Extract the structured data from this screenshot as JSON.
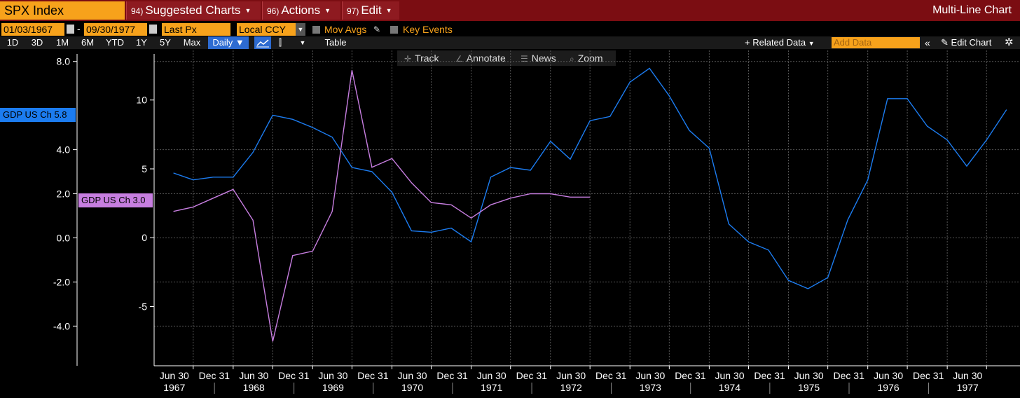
{
  "header": {
    "ticker": "SPX Index",
    "menus": [
      {
        "num": "94)",
        "label": "Suggested Charts"
      },
      {
        "num": "96)",
        "label": "Actions"
      },
      {
        "num": "97)",
        "label": "Edit"
      }
    ],
    "chart_title": "Multi-Line Chart"
  },
  "options": {
    "start_date": "01/03/1967",
    "end_date": "09/30/1977",
    "field": "Last Px",
    "currency": "Local CCY",
    "mov_avgs": "Mov Avgs",
    "key_events": "Key Events"
  },
  "range_bar": {
    "ranges": [
      "1D",
      "3D",
      "1M",
      "6M",
      "YTD",
      "1Y",
      "5Y",
      "Max"
    ],
    "period": "Daily ▼",
    "table": "Table",
    "related_data": "+ Related Data",
    "add_data_placeholder": "Add Data",
    "edit_chart": "Edit Chart"
  },
  "tools": [
    "Track",
    "Annotate",
    "News",
    "Zoom"
  ],
  "series_tags": [
    {
      "label": "GDP US Ch 5.8",
      "color": "#1c7cf0"
    },
    {
      "label": "GDP US Ch 3.0",
      "color": "#c77ee0"
    }
  ],
  "chart_data": {
    "type": "line",
    "x_tick_labels": [
      "Jun 30",
      "Dec 31",
      "Jun 30",
      "Dec 31",
      "Jun 30",
      "Dec 31",
      "Jun 30",
      "Dec 31",
      "Jun 30",
      "Dec 31",
      "Jun 30",
      "Dec 31",
      "Jun 30",
      "Dec 31",
      "Jun 30",
      "Dec 31",
      "Jun 30",
      "Dec 31",
      "Jun 30",
      "Dec 31",
      "Jun 30"
    ],
    "x_year_labels": [
      "1967",
      "1968",
      "1969",
      "1970",
      "1971",
      "1972",
      "1973",
      "1974",
      "1975",
      "1976",
      "1977"
    ],
    "left_axis": {
      "ticks": [
        -4.0,
        -2.0,
        0.0,
        2.0,
        4.0,
        8.0
      ],
      "tick_labels": [
        "-4.0",
        "-2.0",
        "0.0",
        "2.0",
        "4.0",
        "8.0"
      ],
      "range": [
        -5.8,
        8.5
      ]
    },
    "right_axis": {
      "ticks": [
        -5,
        0,
        5,
        10
      ],
      "tick_labels": [
        "-5",
        "0",
        "5",
        "10"
      ],
      "range": [
        -9.3,
        13.6
      ]
    },
    "series": [
      {
        "color": "#1c7cf0",
        "axis": "right",
        "x": [
          "1967-03-31",
          "1967-06-30",
          "1967-09-30",
          "1967-12-31",
          "1968-03-31",
          "1968-06-30",
          "1968-09-30",
          "1968-12-31",
          "1969-03-31",
          "1969-06-30",
          "1969-09-30",
          "1969-12-31",
          "1970-03-31",
          "1970-06-30",
          "1970-09-30",
          "1970-12-31",
          "1971-03-31",
          "1971-06-30",
          "1971-09-30",
          "1971-12-31",
          "1972-03-31",
          "1972-06-30",
          "1972-09-30",
          "1972-12-31",
          "1973-03-31",
          "1973-06-30",
          "1973-09-30",
          "1973-12-31",
          "1974-03-31",
          "1974-06-30",
          "1974-09-30",
          "1974-12-31",
          "1975-03-31",
          "1975-06-30",
          "1975-09-30",
          "1975-12-31",
          "1976-03-31",
          "1976-06-30",
          "1976-09-30",
          "1976-12-31",
          "1977-03-31",
          "1977-06-30",
          "1977-09-30"
        ],
        "y": [
          4.7,
          4.2,
          4.4,
          4.4,
          6.2,
          8.9,
          8.6,
          8.0,
          7.3,
          5.1,
          4.8,
          3.3,
          0.5,
          0.4,
          0.7,
          -0.3,
          4.4,
          5.1,
          4.9,
          7.0,
          5.7,
          8.5,
          8.8,
          11.3,
          12.3,
          10.3,
          7.8,
          6.5,
          1.0,
          -0.3,
          -0.9,
          -3.1,
          -3.7,
          -2.9,
          1.3,
          4.2,
          10.1,
          10.1,
          8.1,
          7.1,
          5.2,
          7.1,
          9.3
        ]
      },
      {
        "color": "#c77ee0",
        "axis": "left",
        "x": [
          "1967-03-31",
          "1967-06-30",
          "1967-09-30",
          "1967-12-31",
          "1968-03-31",
          "1968-06-30",
          "1968-09-30",
          "1968-12-31",
          "1969-03-31",
          "1969-06-30",
          "1969-09-30",
          "1969-12-31",
          "1970-03-31",
          "1970-06-30",
          "1970-09-30",
          "1970-12-31",
          "1971-03-31",
          "1971-06-30",
          "1971-09-30",
          "1971-12-31",
          "1972-03-31",
          "1972-06-30"
        ],
        "y": [
          1.2,
          1.4,
          1.8,
          2.2,
          0.8,
          -4.7,
          -0.8,
          -0.6,
          1.2,
          7.6,
          3.2,
          3.6,
          2.5,
          1.6,
          1.5,
          0.9,
          1.5,
          1.8,
          2.0,
          2.0,
          1.85,
          1.85
        ]
      }
    ]
  }
}
